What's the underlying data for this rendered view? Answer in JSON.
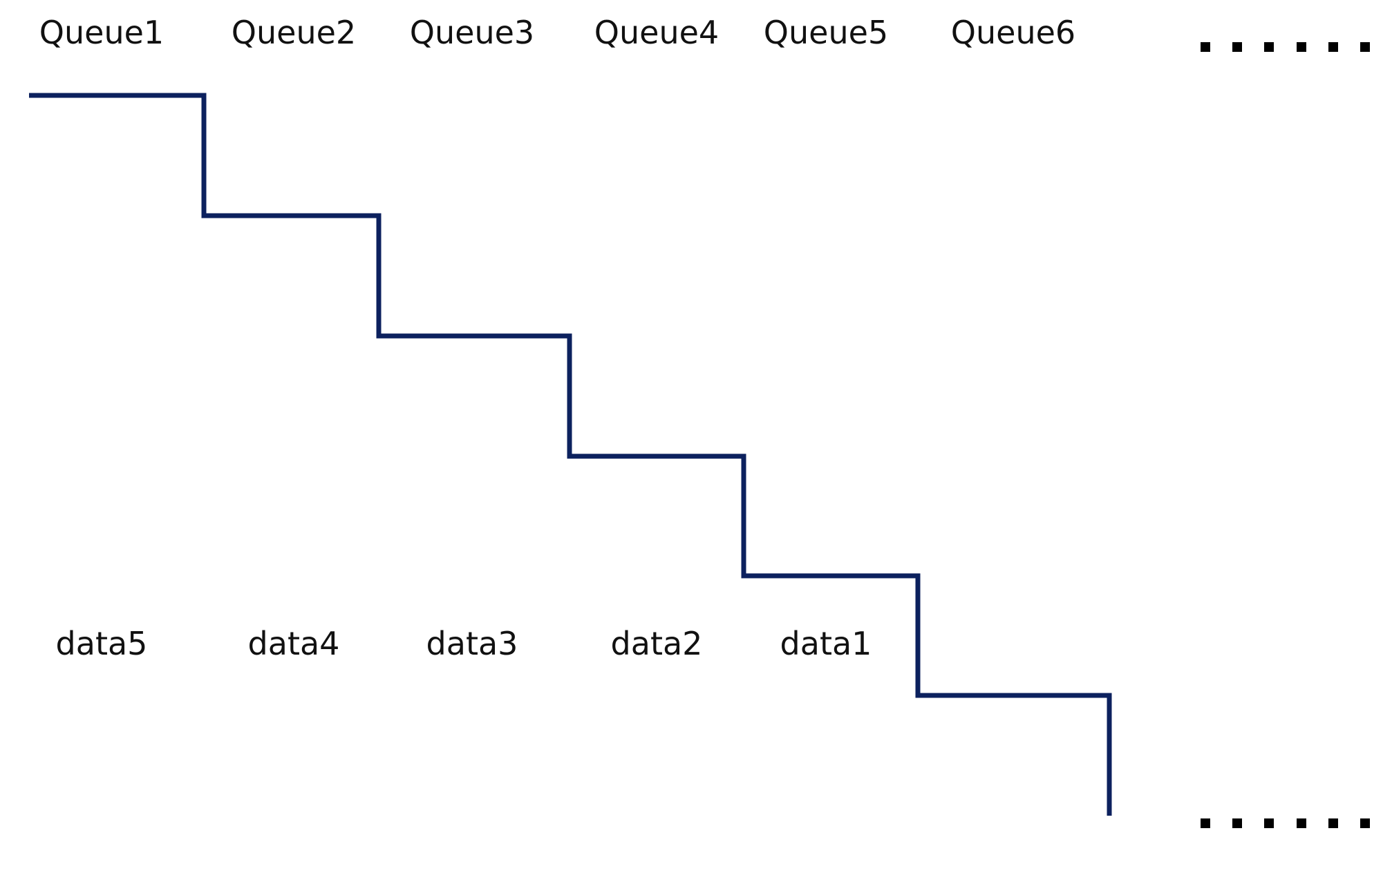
{
  "queues": [
    {
      "label": "Queue1"
    },
    {
      "label": "Queue2"
    },
    {
      "label": "Queue3"
    },
    {
      "label": "Queue4"
    },
    {
      "label": "Queue5"
    },
    {
      "label": "Queue6"
    }
  ],
  "data_items": [
    {
      "label": "data5"
    },
    {
      "label": "data4"
    },
    {
      "label": "data3"
    },
    {
      "label": "data2"
    },
    {
      "label": "data1"
    }
  ],
  "staircase": {
    "color": "#0c215e",
    "steps": 6
  },
  "ellipsis": {
    "color": "#000000",
    "dots": 6
  }
}
